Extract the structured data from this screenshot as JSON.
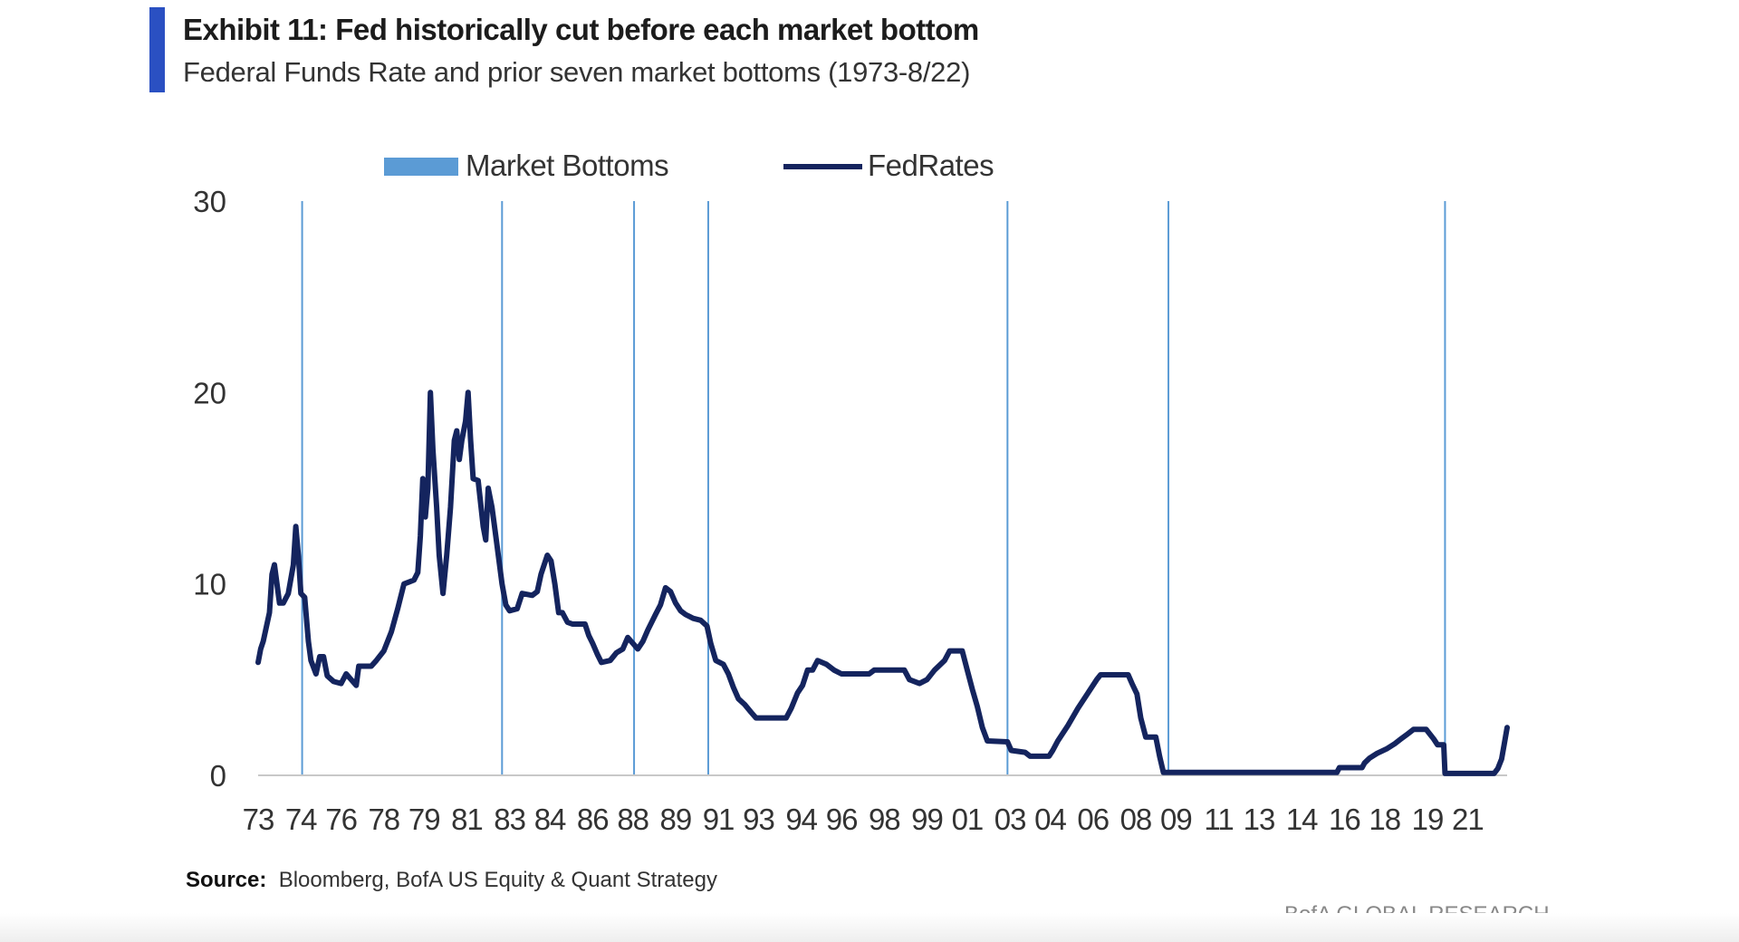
{
  "header": {
    "title": "Exhibit 11: Fed historically cut before each market bottom",
    "subtitle": "Federal Funds Rate and prior seven market bottoms (1973-8/22)"
  },
  "footer": {
    "source_label": "Source:",
    "source_text": "Bloomberg, BofA US Equity & Quant Strategy",
    "brand": "BofA GLOBAL RESEARCH"
  },
  "colors": {
    "accent": "#2a50c2",
    "line": "#14245e",
    "bottoms": "#5b9bd5",
    "axis": "#333333"
  },
  "chart_data": {
    "type": "line",
    "title": "Exhibit 11: Fed historically cut before each market bottom",
    "subtitle": "Federal Funds Rate and prior seven market bottoms (1973-8/22)",
    "xlabel": "",
    "ylabel": "",
    "xlim": [
      1973.0,
      2022.67
    ],
    "ylim": [
      0,
      30
    ],
    "y_ticks": [
      0,
      10,
      20,
      30
    ],
    "grid": false,
    "legend": {
      "position": "top-center",
      "entries": [
        "Market Bottoms",
        "FedRates"
      ]
    },
    "x_tick_labels": [
      {
        "year": 1973.0,
        "label": "73"
      },
      {
        "year": 1974.7,
        "label": "74"
      },
      {
        "year": 1976.3,
        "label": "76"
      },
      {
        "year": 1978.0,
        "label": "78"
      },
      {
        "year": 1979.6,
        "label": "79"
      },
      {
        "year": 1981.3,
        "label": "81"
      },
      {
        "year": 1983.0,
        "label": "83"
      },
      {
        "year": 1984.6,
        "label": "84"
      },
      {
        "year": 1986.3,
        "label": "86"
      },
      {
        "year": 1987.9,
        "label": "88"
      },
      {
        "year": 1989.6,
        "label": "89"
      },
      {
        "year": 1991.3,
        "label": "91"
      },
      {
        "year": 1992.9,
        "label": "93"
      },
      {
        "year": 1994.6,
        "label": "94"
      },
      {
        "year": 1996.2,
        "label": "96"
      },
      {
        "year": 1997.9,
        "label": "98"
      },
      {
        "year": 1999.6,
        "label": "99"
      },
      {
        "year": 2001.2,
        "label": "01"
      },
      {
        "year": 2002.9,
        "label": "03"
      },
      {
        "year": 2004.5,
        "label": "04"
      },
      {
        "year": 2006.2,
        "label": "06"
      },
      {
        "year": 2007.9,
        "label": "08"
      },
      {
        "year": 2009.5,
        "label": "09"
      },
      {
        "year": 2011.2,
        "label": "11"
      },
      {
        "year": 2012.8,
        "label": "13"
      },
      {
        "year": 2014.5,
        "label": "14"
      },
      {
        "year": 2016.2,
        "label": "16"
      },
      {
        "year": 2017.8,
        "label": "18"
      },
      {
        "year": 2019.5,
        "label": "19"
      },
      {
        "year": 2021.1,
        "label": "21"
      }
    ],
    "market_bottoms": [
      1974.75,
      1982.7,
      1987.95,
      1990.9,
      2002.8,
      2009.2,
      2020.2
    ],
    "series": [
      {
        "name": "FedRates",
        "points": [
          [
            1973.0,
            5.9
          ],
          [
            1973.1,
            6.6
          ],
          [
            1973.2,
            7.0
          ],
          [
            1973.45,
            8.5
          ],
          [
            1973.55,
            10.5
          ],
          [
            1973.65,
            11.0
          ],
          [
            1973.75,
            10.0
          ],
          [
            1973.85,
            9.0
          ],
          [
            1974.0,
            9.0
          ],
          [
            1974.2,
            9.5
          ],
          [
            1974.4,
            11.0
          ],
          [
            1974.5,
            13.0
          ],
          [
            1974.6,
            11.5
          ],
          [
            1974.7,
            9.5
          ],
          [
            1974.85,
            9.3
          ],
          [
            1975.0,
            7.0
          ],
          [
            1975.1,
            6.0
          ],
          [
            1975.3,
            5.3
          ],
          [
            1975.45,
            6.2
          ],
          [
            1975.6,
            6.2
          ],
          [
            1975.75,
            5.2
          ],
          [
            1976.0,
            4.9
          ],
          [
            1976.3,
            4.8
          ],
          [
            1976.5,
            5.3
          ],
          [
            1976.7,
            5.0
          ],
          [
            1976.9,
            4.7
          ],
          [
            1977.0,
            5.7
          ],
          [
            1977.5,
            5.7
          ],
          [
            1977.7,
            6.0
          ],
          [
            1978.0,
            6.5
          ],
          [
            1978.3,
            7.5
          ],
          [
            1978.55,
            8.7
          ],
          [
            1978.8,
            10.0
          ],
          [
            1979.0,
            10.1
          ],
          [
            1979.2,
            10.2
          ],
          [
            1979.35,
            10.6
          ],
          [
            1979.45,
            12.5
          ],
          [
            1979.55,
            15.5
          ],
          [
            1979.65,
            13.5
          ],
          [
            1979.75,
            15.0
          ],
          [
            1979.85,
            20.0
          ],
          [
            1979.95,
            17.0
          ],
          [
            1980.1,
            14.0
          ],
          [
            1980.2,
            11.5
          ],
          [
            1980.35,
            9.5
          ],
          [
            1980.5,
            11.5
          ],
          [
            1980.65,
            14.0
          ],
          [
            1980.8,
            17.5
          ],
          [
            1980.9,
            18.0
          ],
          [
            1981.0,
            16.5
          ],
          [
            1981.1,
            17.5
          ],
          [
            1981.25,
            18.5
          ],
          [
            1981.35,
            20.0
          ],
          [
            1981.45,
            17.5
          ],
          [
            1981.55,
            15.5
          ],
          [
            1981.75,
            15.4
          ],
          [
            1981.95,
            13.0
          ],
          [
            1982.05,
            12.3
          ],
          [
            1982.15,
            15.0
          ],
          [
            1982.3,
            14.0
          ],
          [
            1982.45,
            12.5
          ],
          [
            1982.7,
            10.0
          ],
          [
            1982.85,
            8.9
          ],
          [
            1983.0,
            8.6
          ],
          [
            1983.3,
            8.7
          ],
          [
            1983.5,
            9.5
          ],
          [
            1983.9,
            9.4
          ],
          [
            1984.1,
            9.6
          ],
          [
            1984.25,
            10.5
          ],
          [
            1984.5,
            11.5
          ],
          [
            1984.65,
            11.2
          ],
          [
            1984.8,
            10.0
          ],
          [
            1984.95,
            8.5
          ],
          [
            1985.1,
            8.5
          ],
          [
            1985.3,
            8.0
          ],
          [
            1985.5,
            7.9
          ],
          [
            1986.0,
            7.9
          ],
          [
            1986.15,
            7.3
          ],
          [
            1986.3,
            6.9
          ],
          [
            1986.5,
            6.3
          ],
          [
            1986.65,
            5.9
          ],
          [
            1987.0,
            6.0
          ],
          [
            1987.25,
            6.4
          ],
          [
            1987.5,
            6.6
          ],
          [
            1987.7,
            7.2
          ],
          [
            1987.9,
            6.9
          ],
          [
            1988.1,
            6.6
          ],
          [
            1988.3,
            7.0
          ],
          [
            1988.5,
            7.6
          ],
          [
            1988.8,
            8.4
          ],
          [
            1989.0,
            8.9
          ],
          [
            1989.2,
            9.8
          ],
          [
            1989.4,
            9.6
          ],
          [
            1989.6,
            9.0
          ],
          [
            1989.8,
            8.6
          ],
          [
            1990.0,
            8.4
          ],
          [
            1990.3,
            8.2
          ],
          [
            1990.6,
            8.1
          ],
          [
            1990.85,
            7.8
          ],
          [
            1991.0,
            6.9
          ],
          [
            1991.2,
            6.0
          ],
          [
            1991.5,
            5.8
          ],
          [
            1991.7,
            5.3
          ],
          [
            1991.9,
            4.6
          ],
          [
            1992.1,
            4.0
          ],
          [
            1992.35,
            3.7
          ],
          [
            1992.6,
            3.3
          ],
          [
            1992.8,
            3.0
          ],
          [
            1994.0,
            3.0
          ],
          [
            1994.2,
            3.5
          ],
          [
            1994.45,
            4.3
          ],
          [
            1994.65,
            4.7
          ],
          [
            1994.85,
            5.5
          ],
          [
            1995.05,
            5.5
          ],
          [
            1995.25,
            6.0
          ],
          [
            1995.6,
            5.8
          ],
          [
            1995.9,
            5.5
          ],
          [
            1996.2,
            5.3
          ],
          [
            1997.3,
            5.3
          ],
          [
            1997.5,
            5.5
          ],
          [
            1998.7,
            5.5
          ],
          [
            1998.9,
            5.0
          ],
          [
            1999.3,
            4.8
          ],
          [
            1999.6,
            5.0
          ],
          [
            1999.9,
            5.5
          ],
          [
            2000.3,
            6.0
          ],
          [
            2000.5,
            6.5
          ],
          [
            2001.0,
            6.5
          ],
          [
            2001.2,
            5.5
          ],
          [
            2001.4,
            4.5
          ],
          [
            2001.6,
            3.6
          ],
          [
            2001.8,
            2.5
          ],
          [
            2002.0,
            1.8
          ],
          [
            2002.8,
            1.75
          ],
          [
            2002.95,
            1.3
          ],
          [
            2003.5,
            1.2
          ],
          [
            2003.7,
            1.0
          ],
          [
            2004.45,
            1.0
          ],
          [
            2004.6,
            1.3
          ],
          [
            2004.8,
            1.8
          ],
          [
            2005.2,
            2.6
          ],
          [
            2005.6,
            3.5
          ],
          [
            2006.0,
            4.3
          ],
          [
            2006.35,
            5.0
          ],
          [
            2006.5,
            5.25
          ],
          [
            2007.6,
            5.25
          ],
          [
            2007.75,
            4.8
          ],
          [
            2007.95,
            4.25
          ],
          [
            2008.1,
            3.0
          ],
          [
            2008.3,
            2.0
          ],
          [
            2008.7,
            2.0
          ],
          [
            2008.85,
            1.0
          ],
          [
            2009.0,
            0.15
          ],
          [
            2015.9,
            0.15
          ],
          [
            2016.0,
            0.4
          ],
          [
            2016.9,
            0.4
          ],
          [
            2017.0,
            0.65
          ],
          [
            2017.2,
            0.9
          ],
          [
            2017.5,
            1.15
          ],
          [
            2017.9,
            1.4
          ],
          [
            2018.2,
            1.65
          ],
          [
            2018.45,
            1.9
          ],
          [
            2018.7,
            2.15
          ],
          [
            2018.95,
            2.4
          ],
          [
            2019.45,
            2.4
          ],
          [
            2019.6,
            2.15
          ],
          [
            2019.75,
            1.9
          ],
          [
            2019.9,
            1.6
          ],
          [
            2020.15,
            1.6
          ],
          [
            2020.2,
            0.1
          ],
          [
            2022.15,
            0.1
          ],
          [
            2022.3,
            0.35
          ],
          [
            2022.45,
            0.85
          ],
          [
            2022.55,
            1.6
          ],
          [
            2022.67,
            2.5
          ]
        ]
      }
    ]
  }
}
